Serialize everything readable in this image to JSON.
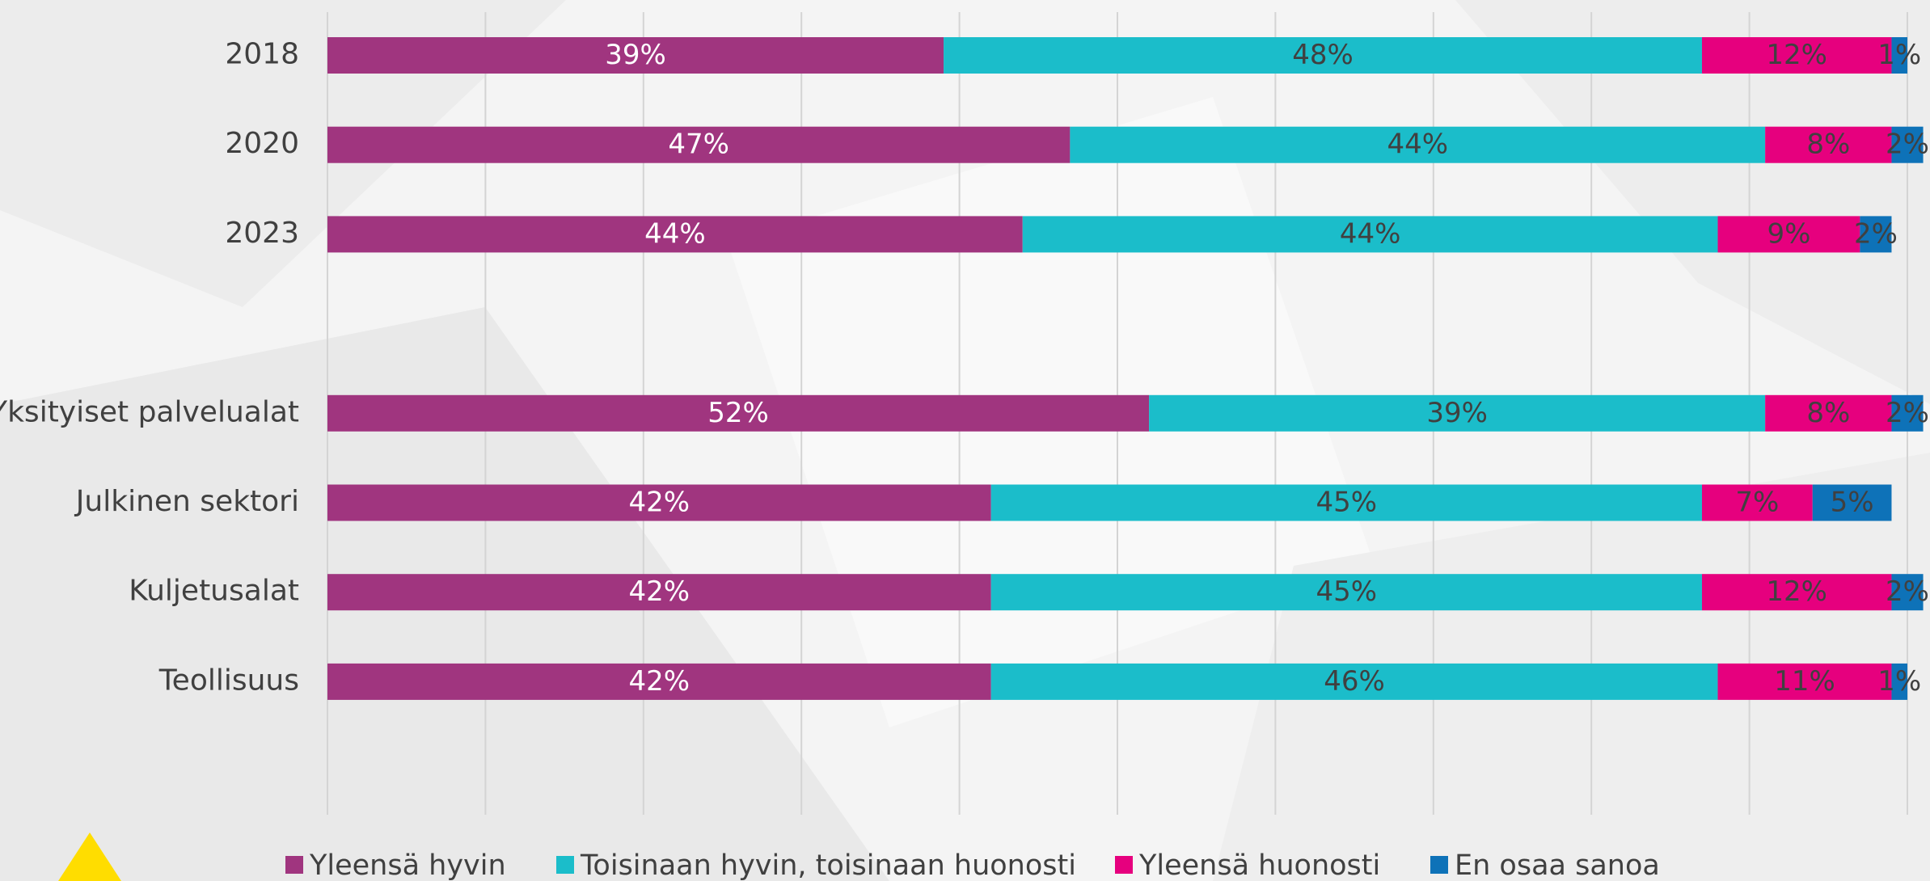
{
  "chart_data": {
    "type": "stacked_barh",
    "categories": [
      "2018",
      "2020",
      "2023",
      null,
      "Yksityiset palvelualat",
      "Julkinen sektori",
      "Kuljetusalat",
      "Teollisuus"
    ],
    "series": [
      {
        "name": "Yleensä hyvin",
        "color": "#a0357f",
        "label_color": "#ffffff",
        "values": [
          39,
          47,
          44,
          null,
          52,
          42,
          42,
          42
        ],
        "value_labels": [
          "39%",
          "47%",
          "44%",
          null,
          "52%",
          "42%",
          "42%",
          "42%"
        ]
      },
      {
        "name": "Toisinaan hyvin, toisinaan huonosti",
        "color": "#1bbdca",
        "label_color": "#404040",
        "values": [
          48,
          44,
          44,
          null,
          39,
          45,
          45,
          46
        ],
        "value_labels": [
          "48%",
          "44%",
          "44%",
          null,
          "39%",
          "45%",
          "45%",
          "46%"
        ]
      },
      {
        "name": "Yleensä huonosti",
        "color": "#e6007e",
        "label_color": "#404040",
        "values": [
          12,
          8,
          9,
          null,
          8,
          7,
          12,
          11
        ],
        "value_labels": [
          "12%",
          "8%",
          "9%",
          null,
          "8%",
          "7%",
          "12%",
          "11%"
        ]
      },
      {
        "name": "En osaa sanoa",
        "color": "#0e72b8",
        "label_color": "#404040",
        "values": [
          1,
          2,
          2,
          null,
          2,
          5,
          2,
          1
        ],
        "value_labels": [
          "1%",
          "2%",
          "2%",
          null,
          "2%",
          "5%",
          "2%",
          "1%"
        ]
      }
    ],
    "xlim": [
      0,
      100
    ],
    "xticks": [
      0,
      10,
      20,
      30,
      40,
      50,
      60,
      70,
      80,
      90,
      100
    ],
    "grid": true,
    "legend": "bottom"
  }
}
